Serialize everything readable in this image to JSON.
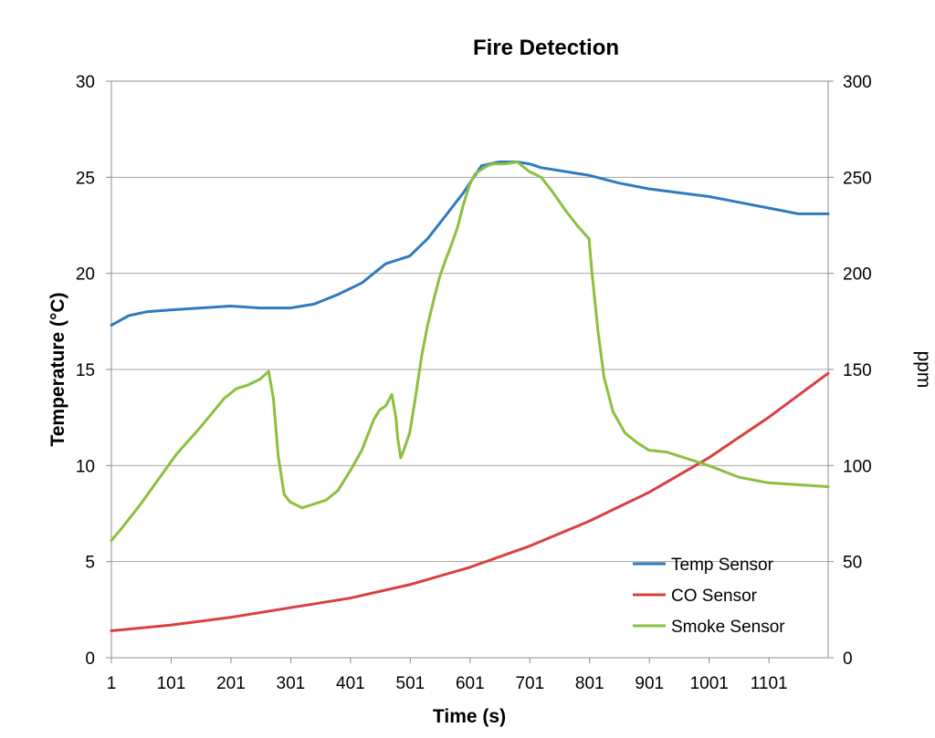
{
  "chart_data": {
    "type": "line",
    "title": "Fire Detection",
    "xlabel": "Time (s)",
    "ylabel": "Temperature (°C)",
    "y2label": "ppm",
    "xlim": [
      1,
      1200
    ],
    "ylim": [
      0,
      30
    ],
    "y2lim": [
      0,
      300
    ],
    "x_ticks": [
      1,
      101,
      201,
      301,
      401,
      501,
      601,
      701,
      801,
      901,
      1001,
      1101
    ],
    "y_ticks": [
      0,
      5,
      10,
      15,
      20,
      25,
      30
    ],
    "y2_ticks": [
      0,
      50,
      100,
      150,
      200,
      250,
      300
    ],
    "grid": "horizontal",
    "legend_position": "bottom-right",
    "series": [
      {
        "name": "Temp Sensor",
        "axis": "left",
        "color": "#2e7bbf",
        "x": [
          1,
          30,
          60,
          100,
          150,
          200,
          250,
          300,
          340,
          380,
          420,
          460,
          500,
          530,
          560,
          590,
          620,
          650,
          680,
          700,
          720,
          760,
          800,
          850,
          900,
          950,
          1000,
          1050,
          1100,
          1150,
          1200
        ],
        "values": [
          17.3,
          17.8,
          18.0,
          18.1,
          18.2,
          18.3,
          18.2,
          18.2,
          18.4,
          18.9,
          19.5,
          20.5,
          20.9,
          21.8,
          23.0,
          24.2,
          25.6,
          25.8,
          25.8,
          25.7,
          25.5,
          25.3,
          25.1,
          24.7,
          24.4,
          24.2,
          24.0,
          23.7,
          23.4,
          23.1,
          23.1
        ]
      },
      {
        "name": "CO Sensor",
        "axis": "right",
        "color": "#d94040",
        "x": [
          1,
          100,
          200,
          300,
          400,
          500,
          600,
          700,
          800,
          900,
          1000,
          1100,
          1200
        ],
        "values": [
          14,
          17,
          21,
          26,
          31,
          38,
          47,
          58,
          71,
          86,
          104,
          125,
          148
        ]
      },
      {
        "name": "Smoke Sensor",
        "axis": "right",
        "color": "#8dbf3f",
        "x": [
          1,
          20,
          50,
          80,
          110,
          150,
          190,
          210,
          230,
          250,
          264,
          272,
          280,
          290,
          300,
          320,
          340,
          360,
          380,
          400,
          420,
          440,
          450,
          460,
          470,
          477,
          480,
          485,
          490,
          500,
          510,
          520,
          530,
          540,
          550,
          560,
          570,
          580,
          590,
          600,
          610,
          620,
          630,
          640,
          660,
          680,
          700,
          720,
          740,
          760,
          780,
          800,
          805,
          815,
          825,
          840,
          860,
          880,
          900,
          930,
          960,
          1000,
          1050,
          1100,
          1150,
          1200
        ],
        "values": [
          61,
          68,
          80,
          93,
          106,
          120,
          135,
          140,
          142,
          145,
          149,
          135,
          105,
          85,
          81,
          78,
          80,
          82,
          87,
          97,
          108,
          124,
          129,
          131,
          137,
          125,
          114,
          104,
          108,
          117,
          136,
          157,
          173,
          186,
          198,
          207,
          215,
          224,
          236,
          246,
          252,
          254,
          256,
          257,
          257,
          258,
          253,
          250,
          242,
          233,
          225,
          218,
          200,
          170,
          146,
          128,
          117,
          112,
          108,
          107,
          104,
          100,
          94,
          91,
          90,
          89
        ]
      }
    ]
  }
}
